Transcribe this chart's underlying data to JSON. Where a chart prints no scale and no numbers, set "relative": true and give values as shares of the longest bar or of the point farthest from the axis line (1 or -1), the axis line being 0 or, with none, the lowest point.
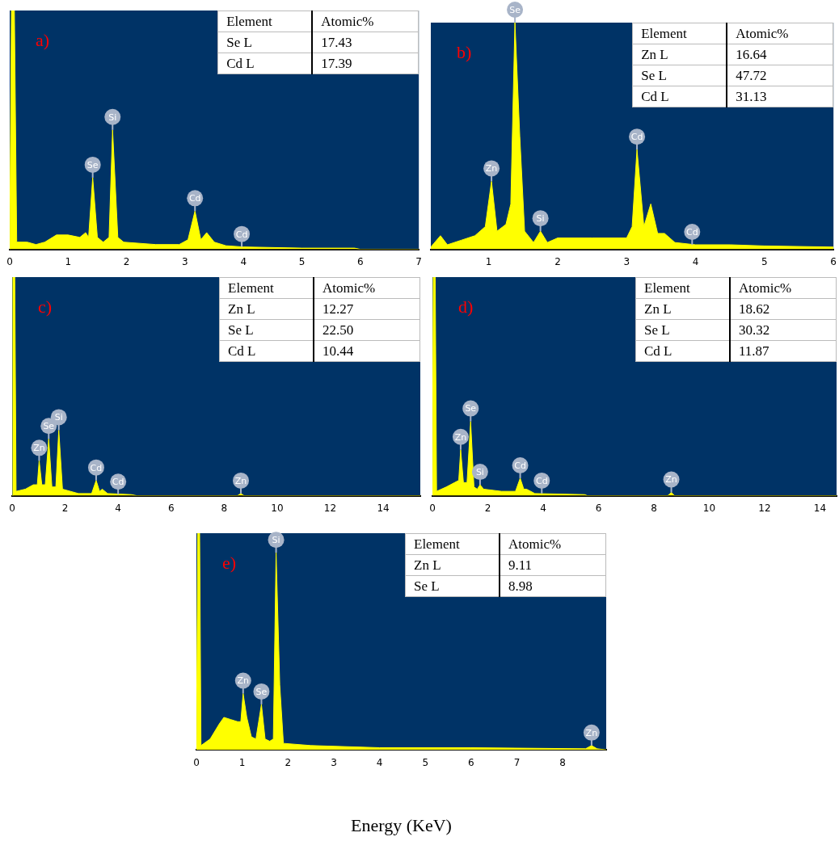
{
  "chart_data": [
    {
      "type": "area",
      "title": "a)",
      "relative": true,
      "xlim": [
        0,
        7
      ],
      "xticks": [
        0,
        1,
        2,
        3,
        4,
        5,
        6,
        7
      ],
      "legend": false,
      "grid": false,
      "color": "#ffff00",
      "x": [
        0,
        0.03,
        0.08,
        0.12,
        0.3,
        0.45,
        0.6,
        0.8,
        1.0,
        1.2,
        1.3,
        1.35,
        1.42,
        1.5,
        1.6,
        1.7,
        1.76,
        1.85,
        1.95,
        2.5,
        2.9,
        3.05,
        3.17,
        3.27,
        3.37,
        3.5,
        3.7,
        4.0,
        5.0,
        5.9,
        6.0,
        7.0
      ],
      "values": [
        0,
        1,
        1,
        0.03,
        0.03,
        0.02,
        0.03,
        0.06,
        0.06,
        0.05,
        0.07,
        0.05,
        0.3,
        0.05,
        0.03,
        0.05,
        0.5,
        0.05,
        0.03,
        0.02,
        0.02,
        0.04,
        0.16,
        0.04,
        0.07,
        0.03,
        0.015,
        0.01,
        0.005,
        0.005,
        0,
        0
      ],
      "annotations": [
        {
          "text": "Se",
          "x": 1.42,
          "y": 0.3
        },
        {
          "text": "Si",
          "x": 1.76,
          "y": 0.5
        },
        {
          "text": "Cd",
          "x": 3.17,
          "y": 0.16
        },
        {
          "text": "Cd",
          "x": 3.97,
          "y": 0.01
        },
        "Element",
        "Atomic%",
        "Se L",
        "17.43",
        "Cd L",
        "17.39"
      ]
    },
    {
      "type": "area",
      "title": "b)",
      "relative": true,
      "xlim": [
        0.16,
        6
      ],
      "xticks": [
        1,
        2,
        3,
        4,
        5,
        6
      ],
      "legend": false,
      "grid": false,
      "color": "#ffff00",
      "x": [
        0.16,
        0.3,
        0.4,
        0.6,
        0.8,
        0.95,
        1.04,
        1.12,
        1.25,
        1.32,
        1.38,
        1.45,
        1.52,
        1.65,
        1.75,
        1.85,
        2.0,
        2.5,
        3.0,
        3.08,
        3.15,
        3.25,
        3.35,
        3.45,
        3.55,
        3.7,
        4.0,
        4.5,
        5.0,
        6.0
      ],
      "values": [
        0.01,
        0.06,
        0.02,
        0.04,
        0.06,
        0.1,
        0.3,
        0.08,
        0.11,
        0.2,
        1,
        0.5,
        0.08,
        0.03,
        0.08,
        0.03,
        0.05,
        0.05,
        0.05,
        0.1,
        0.44,
        0.1,
        0.2,
        0.07,
        0.07,
        0.03,
        0.02,
        0.02,
        0.015,
        0.01
      ],
      "annotations": [
        {
          "text": "Zn",
          "x": 1.04,
          "y": 0.3
        },
        {
          "text": "Se",
          "x": 1.38,
          "y": 1
        },
        {
          "text": "Si",
          "x": 1.75,
          "y": 0.08
        },
        {
          "text": "Cd",
          "x": 3.15,
          "y": 0.44
        },
        {
          "text": "Cd",
          "x": 3.95,
          "y": 0.02
        },
        "Element",
        "Atomic%",
        "Zn L",
        "16.64",
        "Se L",
        "47.72",
        "Cd L",
        "31.13"
      ]
    },
    {
      "type": "area",
      "title": "c)",
      "relative": true,
      "xlim": [
        0,
        15.4
      ],
      "xticks": [
        0,
        2,
        4,
        6,
        8,
        10,
        12,
        14
      ],
      "legend": false,
      "grid": false,
      "color": "#ffff00",
      "x": [
        0,
        0.03,
        0.1,
        0.15,
        0.5,
        0.8,
        0.95,
        1.02,
        1.12,
        1.25,
        1.38,
        1.5,
        1.65,
        1.76,
        1.9,
        2.5,
        3.0,
        3.17,
        3.3,
        3.4,
        3.6,
        4.5,
        4.7,
        8.5,
        8.63,
        8.75,
        15.4
      ],
      "values": [
        0,
        1,
        1,
        0.02,
        0.03,
        0.05,
        0.05,
        0.16,
        0.05,
        0.05,
        0.26,
        0.04,
        0.04,
        0.3,
        0.03,
        0.01,
        0.01,
        0.07,
        0.02,
        0.03,
        0.01,
        0.005,
        0,
        0,
        0.01,
        0,
        0
      ],
      "annotations": [
        {
          "text": "Zn",
          "x": 1.02,
          "y": 0.16
        },
        {
          "text": "Se",
          "x": 1.38,
          "y": 0.26
        },
        {
          "text": "Si",
          "x": 1.76,
          "y": 0.3
        },
        {
          "text": "Cd",
          "x": 3.17,
          "y": 0.07
        },
        {
          "text": "Cd",
          "x": 4.0,
          "y": 0.005
        },
        {
          "text": "Zn",
          "x": 8.63,
          "y": 0.01
        },
        "Element",
        "Atomic%",
        "Zn L",
        "12.27",
        "Se L",
        "22.50",
        "Cd L",
        "10.44"
      ]
    },
    {
      "type": "area",
      "title": "d)",
      "relative": true,
      "xlim": [
        0,
        14.6
      ],
      "xticks": [
        0,
        2,
        4,
        6,
        8,
        10,
        12,
        14
      ],
      "legend": false,
      "grid": false,
      "color": "#ffff00",
      "x": [
        0,
        0.03,
        0.1,
        0.15,
        0.5,
        0.8,
        0.95,
        1.02,
        1.12,
        1.25,
        1.38,
        1.5,
        1.62,
        1.72,
        1.85,
        2.5,
        3.0,
        3.17,
        3.3,
        3.4,
        3.7,
        5.5,
        5.6,
        8.5,
        8.63,
        8.75,
        14.6
      ],
      "values": [
        0,
        1,
        1,
        0.02,
        0.04,
        0.06,
        0.07,
        0.21,
        0.06,
        0.06,
        0.34,
        0.04,
        0.03,
        0.05,
        0.03,
        0.02,
        0.02,
        0.08,
        0.03,
        0.03,
        0.01,
        0.005,
        0,
        0,
        0.015,
        0,
        0
      ],
      "annotations": [
        {
          "text": "Zn",
          "x": 1.02,
          "y": 0.21
        },
        {
          "text": "Se",
          "x": 1.38,
          "y": 0.34
        },
        {
          "text": "Si",
          "x": 1.72,
          "y": 0.05
        },
        {
          "text": "Cd",
          "x": 3.17,
          "y": 0.08
        },
        {
          "text": "Cd",
          "x": 3.95,
          "y": 0.01
        },
        {
          "text": "Zn",
          "x": 8.63,
          "y": 0.015
        },
        "Element",
        "Atomic%",
        "Zn L",
        "18.62",
        "Se L",
        "30.32",
        "Cd L",
        "11.87"
      ]
    },
    {
      "type": "area",
      "title": "e)",
      "xlabel": "Energy (KeV)",
      "relative": true,
      "xlim": [
        0,
        8.95
      ],
      "xticks": [
        0,
        1,
        2,
        3,
        4,
        5,
        6,
        7,
        8
      ],
      "legend": false,
      "grid": false,
      "color": "#ffff00",
      "x": [
        0,
        0.03,
        0.07,
        0.1,
        0.3,
        0.5,
        0.6,
        0.75,
        0.9,
        0.97,
        1.02,
        1.1,
        1.2,
        1.3,
        1.42,
        1.5,
        1.6,
        1.68,
        1.74,
        1.82,
        1.9,
        2.5,
        4.0,
        6.0,
        8.5,
        8.63,
        8.75,
        8.95
      ],
      "values": [
        0,
        1,
        1,
        0.02,
        0.05,
        0.12,
        0.15,
        0.14,
        0.13,
        0.13,
        0.26,
        0.15,
        0.06,
        0.05,
        0.21,
        0.05,
        0.04,
        0.05,
        0.91,
        0.3,
        0.03,
        0.02,
        0.01,
        0.01,
        0.005,
        0.02,
        0.005,
        0
      ],
      "annotations": [
        {
          "text": "Zn",
          "x": 1.02,
          "y": 0.26
        },
        {
          "text": "Se",
          "x": 1.42,
          "y": 0.21
        },
        {
          "text": "Si",
          "x": 1.74,
          "y": 0.91
        },
        {
          "text": "Zn",
          "x": 8.63,
          "y": 0.02
        },
        "Element",
        "Atomic%",
        "Zn L",
        "9.11",
        "Se L",
        "8.98"
      ]
    }
  ]
}
